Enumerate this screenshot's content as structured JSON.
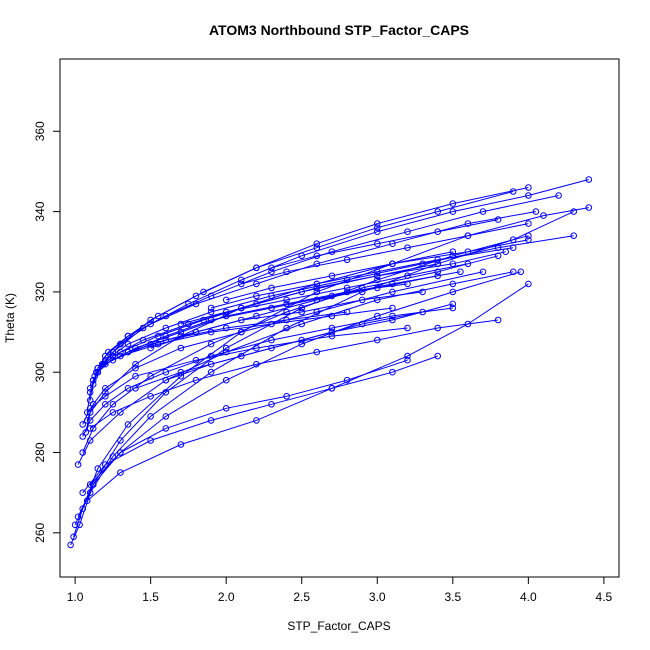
{
  "chart_data": {
    "type": "scatter",
    "title": "ATOM3 Northbound STP_Factor_CAPS",
    "xlabel": "STP_Factor_CAPS",
    "ylabel": "Theta (K)",
    "xlim": [
      0.9,
      4.6
    ],
    "ylim": [
      249,
      378
    ],
    "xticks": [
      1.0,
      1.5,
      2.0,
      2.5,
      3.0,
      3.5,
      4.0,
      4.5
    ],
    "xtick_labels": [
      "1.0",
      "1.5",
      "2.0",
      "2.5",
      "3.0",
      "3.5",
      "4.0",
      "4.5"
    ],
    "yticks": [
      260,
      280,
      300,
      320,
      340,
      360
    ],
    "ytick_labels": [
      "260",
      "280",
      "300",
      "320",
      "340",
      "360"
    ],
    "grid": false,
    "marker": "open-circle",
    "connected": true,
    "color": "#0000ff",
    "series": [
      {
        "x": [
          0.97,
          1.03,
          1.12,
          1.3,
          1.6,
          2.0,
          2.5,
          3.0,
          3.5,
          4.0
        ],
        "y": [
          257,
          262,
          272,
          283,
          295,
          306,
          316,
          323,
          329,
          334
        ]
      },
      {
        "x": [
          0.99,
          1.05,
          1.15,
          1.35,
          1.7,
          2.1,
          2.6,
          3.1,
          3.6,
          4.1,
          4.4
        ],
        "y": [
          259,
          266,
          276,
          287,
          299,
          310,
          320,
          327,
          334,
          339,
          341
        ]
      },
      {
        "x": [
          1.0,
          1.1,
          1.25,
          1.5,
          1.9,
          2.4,
          2.9,
          3.4,
          3.9,
          4.3
        ],
        "y": [
          262,
          270,
          279,
          289,
          300,
          311,
          320,
          327,
          333,
          340
        ]
      },
      {
        "x": [
          1.02,
          1.12,
          1.3,
          1.6,
          2.0,
          2.4,
          2.8,
          3.2
        ],
        "y": [
          264,
          272,
          280,
          286,
          291,
          294,
          298,
          303
        ]
      },
      {
        "x": [
          1.05,
          1.2,
          1.5,
          1.9,
          2.3,
          2.7,
          3.1,
          3.4
        ],
        "y": [
          270,
          277,
          283,
          288,
          292,
          296,
          300,
          304
        ]
      },
      {
        "x": [
          1.08,
          1.3,
          1.7,
          2.2,
          2.7,
          3.2,
          3.6,
          4.0
        ],
        "y": [
          268,
          275,
          282,
          288,
          296,
          304,
          312,
          322
        ]
      },
      {
        "x": [
          1.1,
          1.3,
          1.6,
          2.0,
          2.5,
          3.0,
          3.5,
          3.95
        ],
        "y": [
          272,
          280,
          289,
          298,
          307,
          314,
          320,
          325
        ]
      },
      {
        "x": [
          1.02,
          1.1,
          1.3,
          1.6,
          2.0,
          2.5,
          3.0,
          3.5,
          3.9
        ],
        "y": [
          277,
          283,
          290,
          298,
          305,
          312,
          318,
          322,
          325
        ]
      },
      {
        "x": [
          1.05,
          1.12,
          1.25,
          1.5,
          1.9,
          2.4,
          2.9,
          3.4,
          3.8
        ],
        "y": [
          280,
          286,
          292,
          299,
          307,
          315,
          321,
          325,
          329
        ]
      },
      {
        "x": [
          1.07,
          1.1,
          1.2,
          1.4,
          1.7,
          2.1,
          2.6,
          3.1,
          3.6,
          4.0
        ],
        "y": [
          285,
          290,
          295,
          302,
          309,
          316,
          322,
          327,
          330,
          333
        ]
      },
      {
        "x": [
          1.05,
          1.1,
          1.2,
          1.4,
          1.8,
          2.2,
          2.7,
          3.2
        ],
        "y": [
          287,
          291,
          294,
          299,
          303,
          306,
          309,
          311
        ]
      },
      {
        "x": [
          1.08,
          1.12,
          1.2,
          1.4,
          1.7,
          2.1,
          2.6,
          3.1,
          3.7
        ],
        "y": [
          288,
          292,
          296,
          301,
          306,
          310,
          315,
          320,
          325
        ]
      },
      {
        "x": [
          1.08,
          1.1,
          1.15,
          1.25,
          1.45,
          1.75,
          2.1,
          2.5,
          3.0,
          3.5,
          4.0,
          4.4
        ],
        "y": [
          290,
          295,
          300,
          305,
          311,
          317,
          323,
          329,
          335,
          340,
          344,
          348
        ]
      },
      {
        "x": [
          1.1,
          1.12,
          1.18,
          1.3,
          1.5,
          1.8,
          2.2,
          2.6,
          3.0,
          3.5,
          4.0
        ],
        "y": [
          293,
          298,
          302,
          307,
          313,
          319,
          326,
          332,
          337,
          342,
          346
        ]
      },
      {
        "x": [
          1.1,
          1.15,
          1.2,
          1.35,
          1.55,
          1.85,
          2.2,
          2.6,
          3.0,
          3.4,
          3.9
        ],
        "y": [
          296,
          300,
          304,
          309,
          314,
          320,
          326,
          331,
          336,
          340,
          345
        ]
      },
      {
        "x": [
          1.12,
          1.15,
          1.22,
          1.35,
          1.6,
          1.9,
          2.3,
          2.7,
          3.2,
          3.7,
          4.2
        ],
        "y": [
          297,
          301,
          305,
          309,
          314,
          319,
          325,
          330,
          335,
          340,
          344
        ]
      },
      {
        "x": [
          1.12,
          1.18,
          1.3,
          1.5,
          1.8,
          2.2,
          2.6,
          3.1,
          3.6,
          4.05
        ],
        "y": [
          298,
          302,
          307,
          312,
          317,
          322,
          327,
          332,
          337,
          340
        ]
      },
      {
        "x": [
          1.13,
          1.2,
          1.35,
          1.6,
          1.9,
          2.3,
          2.8,
          3.3,
          3.8,
          4.3
        ],
        "y": [
          299,
          303,
          307,
          311,
          315,
          319,
          323,
          327,
          331,
          334
        ]
      },
      {
        "x": [
          1.14,
          1.25,
          1.45,
          1.75,
          2.1,
          2.5,
          3.0,
          3.5,
          3.85
        ],
        "y": [
          300,
          304,
          308,
          312,
          316,
          320,
          324,
          327,
          330
        ]
      },
      {
        "x": [
          1.15,
          1.3,
          1.55,
          1.85,
          2.2,
          2.6,
          3.0,
          3.4
        ],
        "y": [
          300,
          305,
          309,
          313,
          317,
          321,
          324,
          327
        ]
      },
      {
        "x": [
          1.15,
          1.35,
          1.6,
          1.9,
          2.3,
          2.7,
          3.1,
          3.55
        ],
        "y": [
          301,
          305,
          309,
          313,
          316,
          319,
          322,
          325
        ]
      },
      {
        "x": [
          1.2,
          1.4,
          1.7,
          2.0,
          2.4,
          2.8,
          3.2
        ],
        "y": [
          302,
          306,
          310,
          314,
          317,
          320,
          322
        ]
      },
      {
        "x": [
          1.25,
          1.5,
          1.8,
          2.1,
          2.5,
          2.9,
          3.3
        ],
        "y": [
          303,
          307,
          310,
          313,
          315,
          318,
          320
        ]
      },
      {
        "x": [
          1.3,
          1.55,
          1.9,
          2.3,
          2.7,
          3.1
        ],
        "y": [
          304,
          307,
          310,
          312,
          314,
          316
        ]
      },
      {
        "x": [
          1.35,
          1.6,
          2.0,
          2.4,
          2.8
        ],
        "y": [
          305,
          308,
          311,
          313,
          315
        ]
      },
      {
        "x": [
          1.05,
          1.1,
          1.2,
          1.35,
          1.6,
          1.9,
          2.3,
          2.7,
          3.1,
          3.5
        ],
        "y": [
          284,
          288,
          292,
          296,
          300,
          304,
          308,
          311,
          314,
          316
        ]
      },
      {
        "x": [
          1.1,
          1.25,
          1.5,
          1.8,
          2.2,
          2.6,
          3.0,
          3.4,
          3.8
        ],
        "y": [
          286,
          290,
          294,
          298,
          302,
          305,
          308,
          311,
          313
        ]
      },
      {
        "x": [
          1.5,
          1.8,
          2.2,
          2.6,
          3.0,
          3.4
        ],
        "y": [
          306,
          310,
          314,
          318,
          321,
          324
        ]
      },
      {
        "x": [
          1.7,
          2.0,
          2.4,
          2.8,
          3.2,
          3.6
        ],
        "y": [
          312,
          315,
          318,
          321,
          324,
          327
        ]
      },
      {
        "x": [
          1.9,
          2.2,
          2.6,
          3.0,
          3.4,
          3.9
        ],
        "y": [
          316,
          319,
          322,
          325,
          328,
          331
        ]
      },
      {
        "x": [
          2.0,
          2.3,
          2.7,
          3.1,
          3.5
        ],
        "y": [
          318,
          321,
          324,
          327,
          330
        ]
      },
      {
        "x": [
          2.1,
          2.4,
          2.8,
          3.2,
          3.6,
          4.0
        ],
        "y": [
          322,
          325,
          328,
          331,
          334,
          337
        ]
      },
      {
        "x": [
          2.3,
          2.6,
          3.0,
          3.4,
          3.8
        ],
        "y": [
          326,
          329,
          332,
          335,
          338
        ]
      },
      {
        "x": [
          1.4,
          1.7,
          2.1,
          2.5,
          2.9,
          3.3
        ],
        "y": [
          296,
          300,
          304,
          308,
          312,
          315
        ]
      },
      {
        "x": [
          1.6,
          1.9,
          2.3,
          2.7,
          3.1,
          3.5
        ],
        "y": [
          298,
          302,
          306,
          310,
          313,
          317
        ]
      }
    ]
  }
}
